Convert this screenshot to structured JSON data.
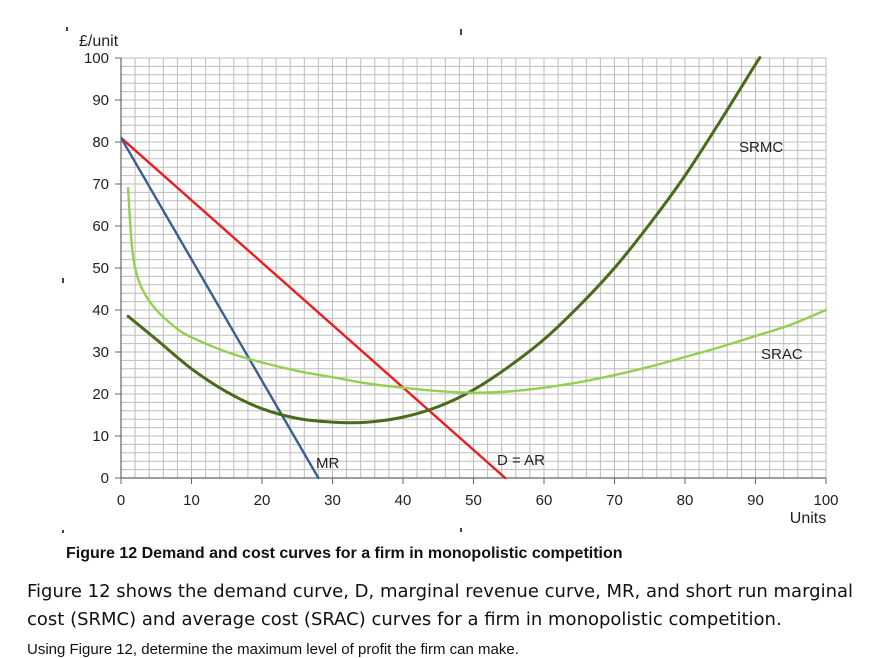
{
  "chart_data": {
    "type": "line",
    "ylabel": "£/unit",
    "xlabel": "Units",
    "xlim": [
      0,
      100
    ],
    "ylim": [
      0,
      100
    ],
    "xticks": [
      0,
      10,
      20,
      30,
      40,
      50,
      60,
      70,
      80,
      90,
      100
    ],
    "yticks": [
      0,
      10,
      20,
      30,
      40,
      50,
      60,
      70,
      80,
      90,
      100
    ],
    "grid": true,
    "series": [
      {
        "name": "D = AR",
        "color": "#ee1c1c",
        "points": [
          [
            0,
            81
          ],
          [
            54.5,
            0
          ]
        ]
      },
      {
        "name": "MR",
        "color": "#3b5e91",
        "points": [
          [
            0,
            81
          ],
          [
            28,
            0
          ]
        ]
      },
      {
        "name": "SRMC",
        "color": "#4a6b1a",
        "points": [
          [
            1,
            38.5
          ],
          [
            5,
            33
          ],
          [
            10,
            26
          ],
          [
            15,
            20.5
          ],
          [
            20,
            16.5
          ],
          [
            25,
            14.2
          ],
          [
            30,
            13.3
          ],
          [
            35,
            13.3
          ],
          [
            40,
            14.5
          ],
          [
            45,
            17
          ],
          [
            50,
            21
          ],
          [
            55,
            26.5
          ],
          [
            60,
            33
          ],
          [
            65,
            41
          ],
          [
            70,
            50
          ],
          [
            75,
            60.5
          ],
          [
            80,
            72
          ],
          [
            85,
            85
          ],
          [
            90,
            98.5
          ],
          [
            90.6,
            100
          ]
        ]
      },
      {
        "name": "SRAC",
        "color": "#92d050",
        "points": [
          [
            1,
            69
          ],
          [
            1.5,
            56
          ],
          [
            2,
            50
          ],
          [
            3,
            45
          ],
          [
            5,
            40
          ],
          [
            8,
            35.5
          ],
          [
            10,
            33.5
          ],
          [
            15,
            30
          ],
          [
            20,
            27.5
          ],
          [
            25,
            25.5
          ],
          [
            30,
            24
          ],
          [
            35,
            22.5
          ],
          [
            40,
            21.5
          ],
          [
            45,
            20.7
          ],
          [
            50,
            20.3
          ],
          [
            55,
            20.6
          ],
          [
            60,
            21.5
          ],
          [
            65,
            22.8
          ],
          [
            70,
            24.5
          ],
          [
            75,
            26.5
          ],
          [
            80,
            28.8
          ],
          [
            85,
            31.2
          ],
          [
            90,
            33.8
          ],
          [
            95,
            36.5
          ],
          [
            100,
            40
          ]
        ]
      }
    ]
  },
  "caption": "Figure 12 Demand and cost curves for a firm in monopolistic competition",
  "paragraph": "Figure 12 shows the demand curve, D, marginal revenue curve, MR, and short run marginal cost (SRMC) and average cost (SRAC) curves for a firm in monopolistic competition.",
  "question": "Using Figure 12, determine the maximum level of profit the firm can make."
}
